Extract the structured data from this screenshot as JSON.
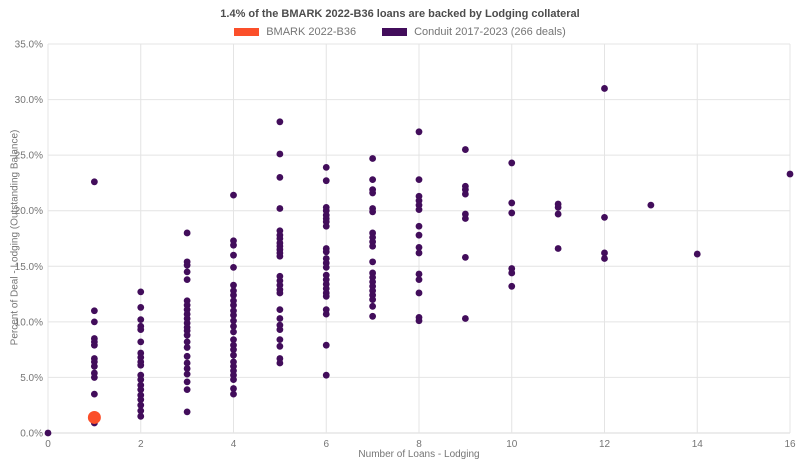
{
  "title": "1.4% of the BMARK 2022-B36 loans are backed by Lodging collateral",
  "legend": [
    {
      "label": "BMARK 2022-B36",
      "color": "#fb4f2a"
    },
    {
      "label": "Conduit 2017-2023 (266 deals)",
      "color": "#420d5b"
    }
  ],
  "colors": {
    "background": "#ffffff",
    "gridline": "#e4e4e4",
    "axis_line": "#d9d9d9",
    "tick_label": "#757575",
    "title_text": "#4d4d4d",
    "bmark": "#fb4f2a",
    "conduit": "#420d5b"
  },
  "chart_data": {
    "type": "scatter",
    "title": "1.4% of the BMARK 2022-B36 loans are backed by Lodging collateral",
    "xlabel": "Number of Loans - Lodging",
    "ylabel": "Percent of Deal - Lodging (Outstanding Balance)",
    "xlim": [
      0,
      16
    ],
    "ylim": [
      0,
      35
    ],
    "grid": true,
    "legend_position": "top-center",
    "x_ticks": [
      {
        "v": 0,
        "label": "0"
      },
      {
        "v": 2,
        "label": "2"
      },
      {
        "v": 4,
        "label": "4"
      },
      {
        "v": 6,
        "label": "6"
      },
      {
        "v": 8,
        "label": "8"
      },
      {
        "v": 10,
        "label": "10"
      },
      {
        "v": 12,
        "label": "12"
      },
      {
        "v": 14,
        "label": "14"
      },
      {
        "v": 16,
        "label": "16"
      }
    ],
    "y_ticks": [
      {
        "v": 0,
        "label": "0.0%"
      },
      {
        "v": 5,
        "label": "5.0%"
      },
      {
        "v": 10,
        "label": "10.0%"
      },
      {
        "v": 15,
        "label": "15.0%"
      },
      {
        "v": 20,
        "label": "20.0%"
      },
      {
        "v": 25,
        "label": "25.0%"
      },
      {
        "v": 30,
        "label": "30.0%"
      },
      {
        "v": 35,
        "label": "35.0%"
      }
    ],
    "series": [
      {
        "name": "Conduit 2017-2023 (266 deals)",
        "color": "#420d5b",
        "marker_radius": 3.4,
        "points": [
          [
            0,
            0.0
          ],
          [
            1,
            22.6
          ],
          [
            1,
            11.0
          ],
          [
            1,
            10.0
          ],
          [
            1,
            8.5
          ],
          [
            1,
            8.2
          ],
          [
            1,
            7.9
          ],
          [
            1,
            6.7
          ],
          [
            1,
            6.4
          ],
          [
            1,
            6.0
          ],
          [
            1,
            5.4
          ],
          [
            1,
            5.0
          ],
          [
            1,
            3.5
          ],
          [
            1,
            0.9
          ],
          [
            2,
            12.7
          ],
          [
            2,
            11.3
          ],
          [
            2,
            10.2
          ],
          [
            2,
            9.6
          ],
          [
            2,
            9.3
          ],
          [
            2,
            8.2
          ],
          [
            2,
            7.2
          ],
          [
            2,
            6.8
          ],
          [
            2,
            6.4
          ],
          [
            2,
            6.1
          ],
          [
            2,
            5.2
          ],
          [
            2,
            4.8
          ],
          [
            2,
            4.3
          ],
          [
            2,
            3.9
          ],
          [
            2,
            3.4
          ],
          [
            2,
            3.0
          ],
          [
            2,
            2.5
          ],
          [
            2,
            2.0
          ],
          [
            2,
            1.5
          ],
          [
            3,
            18.0
          ],
          [
            3,
            15.4
          ],
          [
            3,
            15.1
          ],
          [
            3,
            14.5
          ],
          [
            3,
            13.8
          ],
          [
            3,
            11.9
          ],
          [
            3,
            11.5
          ],
          [
            3,
            11.1
          ],
          [
            3,
            10.7
          ],
          [
            3,
            10.3
          ],
          [
            3,
            9.9
          ],
          [
            3,
            9.5
          ],
          [
            3,
            9.2
          ],
          [
            3,
            8.8
          ],
          [
            3,
            8.2
          ],
          [
            3,
            7.7
          ],
          [
            3,
            6.9
          ],
          [
            3,
            6.3
          ],
          [
            3,
            5.8
          ],
          [
            3,
            5.3
          ],
          [
            3,
            4.6
          ],
          [
            3,
            3.9
          ],
          [
            3,
            1.9
          ],
          [
            4,
            21.4
          ],
          [
            4,
            17.3
          ],
          [
            4,
            16.9
          ],
          [
            4,
            16.0
          ],
          [
            4,
            14.9
          ],
          [
            4,
            13.3
          ],
          [
            4,
            12.8
          ],
          [
            4,
            12.4
          ],
          [
            4,
            11.9
          ],
          [
            4,
            11.5
          ],
          [
            4,
            11.0
          ],
          [
            4,
            10.6
          ],
          [
            4,
            10.1
          ],
          [
            4,
            9.6
          ],
          [
            4,
            9.1
          ],
          [
            4,
            8.4
          ],
          [
            4,
            7.9
          ],
          [
            4,
            7.5
          ],
          [
            4,
            7.0
          ],
          [
            4,
            6.4
          ],
          [
            4,
            6.0
          ],
          [
            4,
            5.6
          ],
          [
            4,
            5.2
          ],
          [
            4,
            4.8
          ],
          [
            4,
            4.0
          ],
          [
            4,
            3.5
          ],
          [
            5,
            28.0
          ],
          [
            5,
            25.1
          ],
          [
            5,
            23.0
          ],
          [
            5,
            20.2
          ],
          [
            5,
            18.2
          ],
          [
            5,
            17.8
          ],
          [
            5,
            17.5
          ],
          [
            5,
            17.1
          ],
          [
            5,
            16.8
          ],
          [
            5,
            16.5
          ],
          [
            5,
            16.2
          ],
          [
            5,
            15.9
          ],
          [
            5,
            14.1
          ],
          [
            5,
            13.7
          ],
          [
            5,
            13.3
          ],
          [
            5,
            12.9
          ],
          [
            5,
            12.6
          ],
          [
            5,
            11.1
          ],
          [
            5,
            10.3
          ],
          [
            5,
            9.7
          ],
          [
            5,
            9.3
          ],
          [
            5,
            8.4
          ],
          [
            5,
            7.8
          ],
          [
            5,
            6.7
          ],
          [
            5,
            6.3
          ],
          [
            6,
            23.9
          ],
          [
            6,
            22.7
          ],
          [
            6,
            20.3
          ],
          [
            6,
            20.0
          ],
          [
            6,
            19.6
          ],
          [
            6,
            19.3
          ],
          [
            6,
            19.0
          ],
          [
            6,
            18.6
          ],
          [
            6,
            16.6
          ],
          [
            6,
            16.3
          ],
          [
            6,
            15.7
          ],
          [
            6,
            15.3
          ],
          [
            6,
            14.9
          ],
          [
            6,
            14.2
          ],
          [
            6,
            13.8
          ],
          [
            6,
            13.4
          ],
          [
            6,
            13.0
          ],
          [
            6,
            12.6
          ],
          [
            6,
            12.3
          ],
          [
            6,
            11.1
          ],
          [
            6,
            10.7
          ],
          [
            6,
            7.9
          ],
          [
            6,
            5.2
          ],
          [
            7,
            24.7
          ],
          [
            7,
            22.8
          ],
          [
            7,
            21.9
          ],
          [
            7,
            21.6
          ],
          [
            7,
            20.2
          ],
          [
            7,
            19.9
          ],
          [
            7,
            18.0
          ],
          [
            7,
            17.6
          ],
          [
            7,
            17.2
          ],
          [
            7,
            16.8
          ],
          [
            7,
            15.4
          ],
          [
            7,
            14.4
          ],
          [
            7,
            14.0
          ],
          [
            7,
            13.6
          ],
          [
            7,
            13.2
          ],
          [
            7,
            12.8
          ],
          [
            7,
            12.4
          ],
          [
            7,
            12.0
          ],
          [
            7,
            11.4
          ],
          [
            7,
            10.5
          ],
          [
            8,
            27.1
          ],
          [
            8,
            22.8
          ],
          [
            8,
            21.3
          ],
          [
            8,
            20.9
          ],
          [
            8,
            20.5
          ],
          [
            8,
            20.1
          ],
          [
            8,
            18.6
          ],
          [
            8,
            17.8
          ],
          [
            8,
            16.7
          ],
          [
            8,
            16.2
          ],
          [
            8,
            14.3
          ],
          [
            8,
            13.8
          ],
          [
            8,
            12.6
          ],
          [
            8,
            10.4
          ],
          [
            8,
            10.1
          ],
          [
            9,
            25.5
          ],
          [
            9,
            22.2
          ],
          [
            9,
            21.9
          ],
          [
            9,
            21.5
          ],
          [
            9,
            19.7
          ],
          [
            9,
            19.3
          ],
          [
            9,
            15.8
          ],
          [
            9,
            10.3
          ],
          [
            10,
            24.3
          ],
          [
            10,
            20.7
          ],
          [
            10,
            19.8
          ],
          [
            10,
            14.8
          ],
          [
            10,
            14.4
          ],
          [
            10,
            13.2
          ],
          [
            11,
            20.6
          ],
          [
            11,
            20.3
          ],
          [
            11,
            19.7
          ],
          [
            11,
            16.6
          ],
          [
            12,
            31.0
          ],
          [
            12,
            19.4
          ],
          [
            12,
            16.2
          ],
          [
            12,
            15.7
          ],
          [
            13,
            20.5
          ],
          [
            14,
            16.1
          ],
          [
            16,
            23.3
          ]
        ]
      },
      {
        "name": "BMARK 2022-B36",
        "color": "#fb4f2a",
        "marker_radius": 6.5,
        "points": [
          [
            1,
            1.4
          ]
        ]
      }
    ]
  }
}
